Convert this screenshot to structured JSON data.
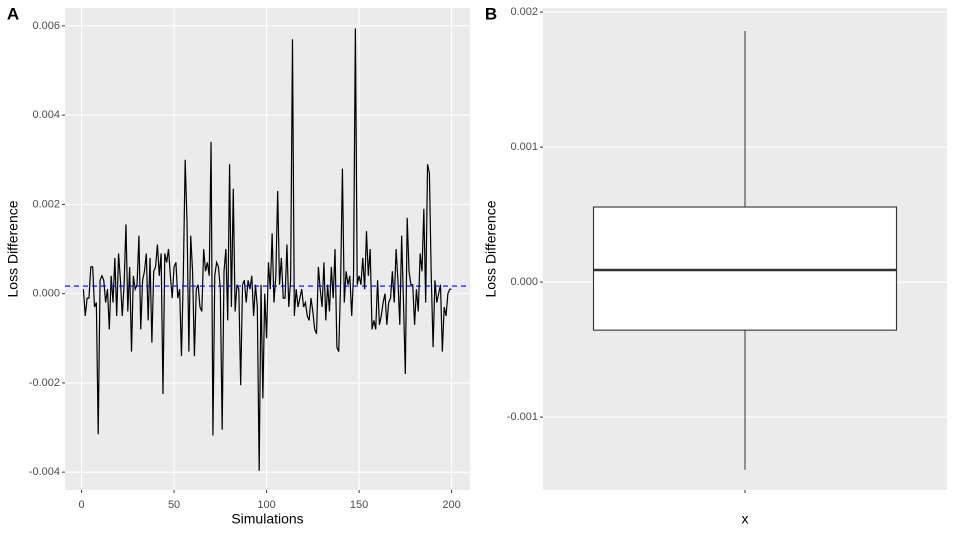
{
  "chart_data": [
    {
      "type": "line",
      "panel_label": "A",
      "x_label": "Simulations",
      "y_label": "Loss Difference",
      "x": [
        1,
        2,
        3,
        4,
        5,
        6,
        7,
        8,
        9,
        10,
        11,
        12,
        13,
        14,
        15,
        16,
        17,
        18,
        19,
        20,
        21,
        22,
        23,
        24,
        25,
        26,
        27,
        28,
        29,
        30,
        31,
        32,
        33,
        34,
        35,
        36,
        37,
        38,
        39,
        40,
        41,
        42,
        43,
        44,
        45,
        46,
        47,
        48,
        49,
        50,
        51,
        52,
        53,
        54,
        55,
        56,
        57,
        58,
        59,
        60,
        61,
        62,
        63,
        64,
        65,
        66,
        67,
        68,
        69,
        70,
        71,
        72,
        73,
        74,
        75,
        76,
        77,
        78,
        79,
        80,
        81,
        82,
        83,
        84,
        85,
        86,
        87,
        88,
        89,
        90,
        91,
        92,
        93,
        94,
        95,
        96,
        97,
        98,
        99,
        100,
        101,
        102,
        103,
        104,
        105,
        106,
        107,
        108,
        109,
        110,
        111,
        112,
        113,
        114,
        115,
        116,
        117,
        118,
        119,
        120,
        121,
        122,
        123,
        124,
        125,
        126,
        127,
        128,
        129,
        130,
        131,
        132,
        133,
        134,
        135,
        136,
        137,
        138,
        139,
        140,
        141,
        142,
        143,
        144,
        145,
        146,
        147,
        148,
        149,
        150,
        151,
        152,
        153,
        154,
        155,
        156,
        157,
        158,
        159,
        160,
        161,
        162,
        163,
        164,
        165,
        166,
        167,
        168,
        169,
        170,
        171,
        172,
        173,
        174,
        175,
        176,
        177,
        178,
        179,
        180,
        181,
        182,
        183,
        184,
        185,
        186,
        187,
        188,
        189,
        190,
        191,
        192,
        193,
        194,
        195,
        196,
        197,
        198,
        199,
        200
      ],
      "values": [
        0.0001,
        -0.0005,
        -0.0001,
        -0.0001,
        0.0006,
        0.0006,
        -0.0003,
        -0.0002,
        -0.00315,
        0.0003,
        0.0004,
        0.0003,
        -0.0002,
        0.0001,
        -0.0008,
        0.0004,
        -0.0002,
        0.0008,
        -0.0005,
        0.0009,
        0.0003,
        -0.0005,
        0.0002,
        0.00155,
        -0.0004,
        0.0006,
        -0.0013,
        0.0004,
        0.0001,
        0.0002,
        0.0013,
        -0.0008,
        0.0003,
        0.0005,
        0.0009,
        -0.0006,
        0.0008,
        -0.0011,
        0.0005,
        0.0006,
        0.0011,
        0.0004,
        0.0009,
        -0.00225,
        0.0009,
        0.0007,
        0.001,
        0.0004,
        -0.0001,
        0.0006,
        0.0007,
        -0.0001,
        0.0001,
        -0.0014,
        0.0004,
        0.003,
        0.0016,
        -0.0013,
        0.0013,
        0.0005,
        -0.0014,
        0.0001,
        0.0002,
        -0.0003,
        -0.0004,
        0.001,
        0.0005,
        0.0007,
        0.0004,
        0.0034,
        -0.00318,
        0.0004,
        0.0007,
        0.0006,
        0.0001,
        -0.00305,
        0.0005,
        0.001,
        -0.0006,
        0.0029,
        -0.0003,
        0.00235,
        -0.0004,
        0.0002,
        0.0001,
        -0.00205,
        0.0002,
        0.0003,
        -0.0002,
        0.0003,
        0.0001,
        0.0004,
        -0.0005,
        0.0002,
        -0.0003,
        -0.00397,
        0.0002,
        -0.00235,
        0.0,
        -0.001,
        0.0007,
        0.0001,
        0.00135,
        -0.0002,
        0.0004,
        0.0023,
        0.0002,
        0.0008,
        -0.0001,
        -0.0001,
        0.0011,
        -0.0003,
        0.0003,
        0.0057,
        -0.0005,
        0.0001,
        -0.0003,
        -0.0001,
        0.0001,
        -0.0003,
        -0.0002,
        -0.0005,
        -0.0006,
        -0.0001,
        -0.0004,
        -0.0008,
        -0.0009,
        0.0006,
        0.0001,
        -0.0003,
        0.0007,
        -0.0006,
        0.0002,
        -0.0004,
        0.0006,
        -0.0001,
        0.001,
        -0.0012,
        -0.0013,
        0.0002,
        0.0028,
        -0.0002,
        0.0005,
        0.0002,
        0.0004,
        -0.0005,
        0.0004,
        0.00594,
        0.0002,
        0.0004,
        0.0002,
        0.0008,
        0.0001,
        0.0014,
        0.0004,
        0.001,
        -0.0008,
        -0.0006,
        -0.0008,
        0.0003,
        -0.0007,
        -0.0005,
        -0.0002,
        0.0,
        -0.0007,
        -0.0002,
        -0.0001,
        0.0005,
        -0.0002,
        0.001,
        0.0003,
        -0.0007,
        0.0013,
        -0.0002,
        -0.0018,
        0.0017,
        0.0005,
        0.0002,
        0.0002,
        -0.0007,
        0.0001,
        -0.0004,
        0.0009,
        0.0005,
        0.0019,
        -0.0002,
        0.0029,
        0.0027,
        0.0004,
        -0.0012,
        0.0003,
        -0.0002,
        0.0,
        0.0002,
        -0.0013,
        -0.0003,
        -0.0005,
        0.0,
        0.0001,
        0.0001
      ],
      "color": "#000000",
      "hline": 0.00017,
      "hline_color": "#0000ff",
      "xlim": [
        -8.95,
        209.95
      ],
      "xticks": [
        0,
        50,
        100,
        150,
        200
      ],
      "ylim": [
        -0.0044,
        0.0064
      ],
      "yticks": [
        -0.004,
        -0.002,
        {
          "value": 0,
          "label": "0.000"
        },
        0.002,
        0.004,
        0.006
      ],
      "grid": true
    },
    {
      "type": "box",
      "panel_label": "B",
      "x_label": "x",
      "y_label": "Loss Difference",
      "categories": [
        null
      ],
      "whisker_low": -0.00139,
      "q1": -0.000356,
      "median": 8.9e-05,
      "q3": 0.000556,
      "whisker_high": 0.00186,
      "color": "#ffffff",
      "ylim": [
        -0.00154,
        0.00203
      ],
      "yticks": [
        -0.001,
        {
          "value": 0,
          "label": "0.000"
        },
        0.001,
        0.002
      ],
      "grid": true
    }
  ]
}
